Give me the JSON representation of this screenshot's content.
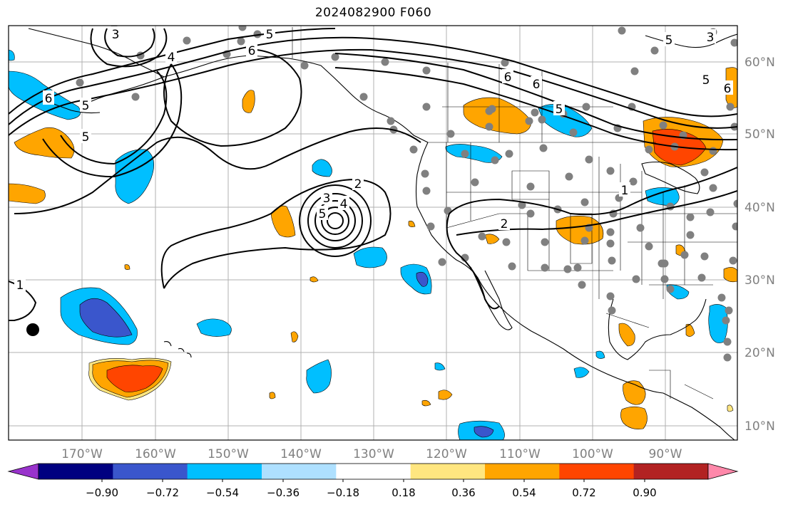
{
  "title": "2024082900 F060",
  "map": {
    "latitude_labels": [
      "60°N",
      "50°N",
      "40°N",
      "30°N",
      "20°N",
      "10°N"
    ],
    "longitude_labels": [
      "170°W",
      "160°W",
      "150°W",
      "140°W",
      "130°W",
      "120°W",
      "110°W",
      "100°W",
      "90°W"
    ],
    "contour_labels": [
      "5",
      "6",
      "4",
      "3",
      "6",
      "5",
      "5",
      "6",
      "5",
      "6",
      "5",
      "6",
      "3",
      "5",
      "2",
      "3",
      "4",
      "5",
      "2",
      "1",
      "1"
    ],
    "colors": {
      "land_outline": "#000000",
      "grid": "#b0b0b0",
      "station_dot": "#808080",
      "contour": "#000000"
    }
  },
  "colorbar": {
    "tick_labels": [
      "−0.90",
      "−0.72",
      "−0.54",
      "−0.36",
      "−0.18",
      "0.18",
      "0.36",
      "0.54",
      "0.72",
      "0.90"
    ],
    "colors": [
      "#9933cc",
      "#000080",
      "#3a56cc",
      "#00bfff",
      "#aee0ff",
      "#ffffff",
      "#ffe680",
      "#ffa500",
      "#ff4500",
      "#b22222",
      "#ff88aa"
    ]
  }
}
